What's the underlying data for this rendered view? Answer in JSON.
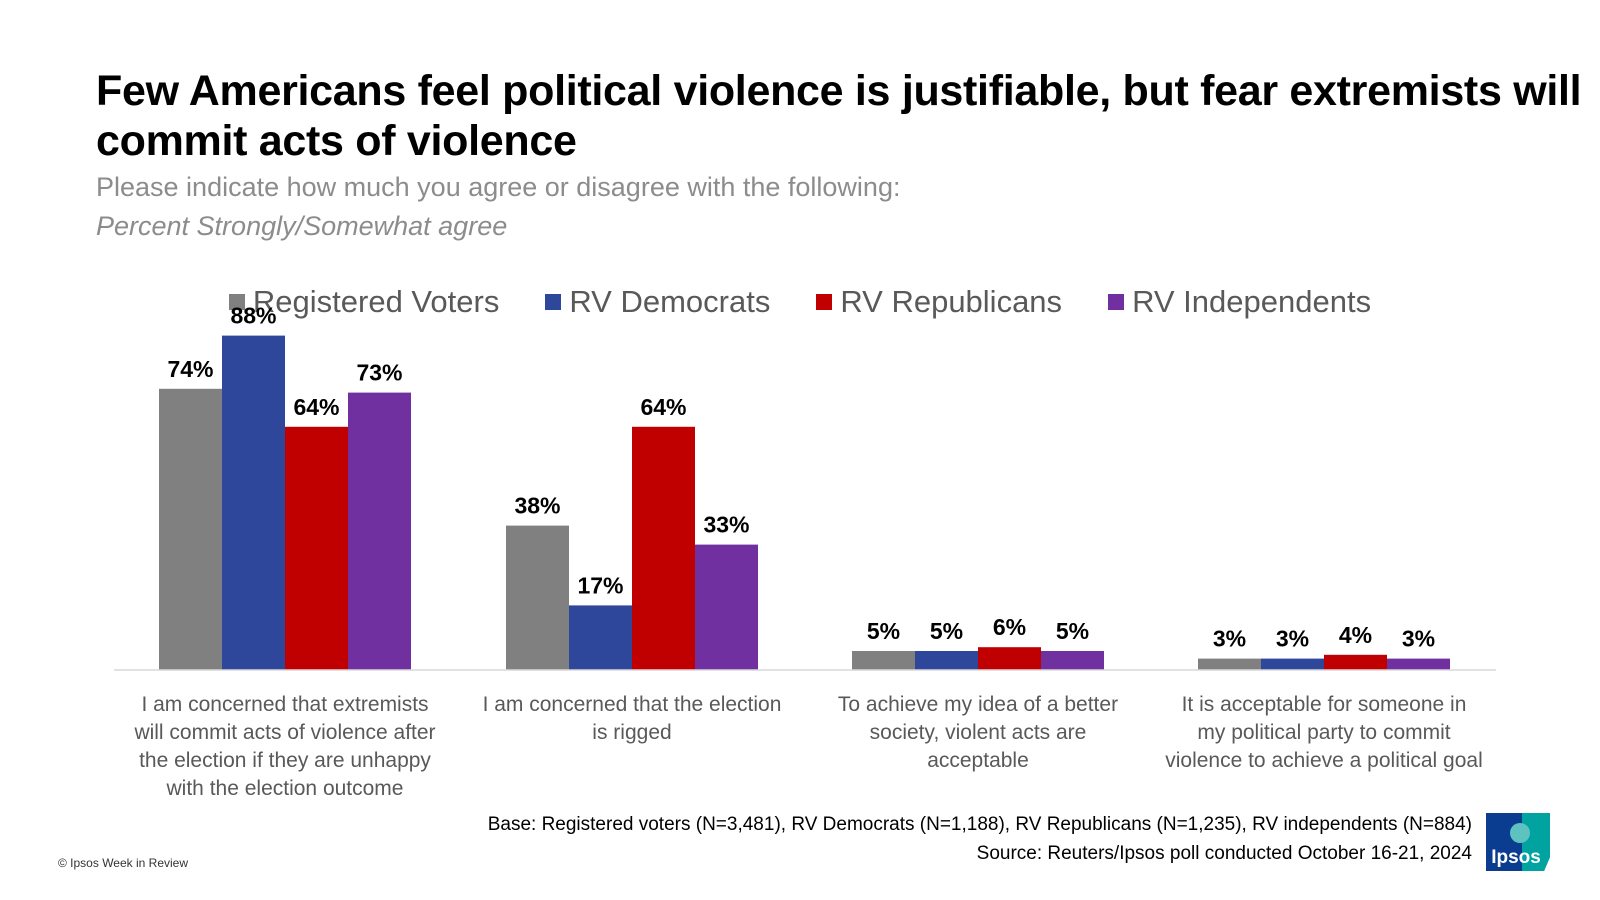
{
  "title": "Few Americans feel political violence is justifiable, but fear extremists will commit acts of violence",
  "subtitle": "Please indicate how much you agree or disagree with the following:",
  "subtitle_italic": "Percent Strongly/Somewhat agree",
  "colors": {
    "registered_voters": "#808080",
    "rv_democrats": "#2e479b",
    "rv_republicans": "#c00000",
    "rv_independents": "#7030a0"
  },
  "chart_data": {
    "type": "bar",
    "categories": [
      "I am concerned that extremists will commit acts of violence after the election if they are unhappy with the election outcome",
      "I am concerned that the election is rigged",
      "To achieve my idea of a better society, violent acts are acceptable",
      "It is acceptable for someone in my political party to commit violence to achieve a political goal"
    ],
    "category_lines": [
      [
        "I am concerned that extremists",
        "will commit acts of violence after",
        "the election if they are unhappy",
        "with the election outcome"
      ],
      [
        "I am concerned that the election",
        "is rigged"
      ],
      [
        "To achieve my idea of a better",
        "society, violent acts are",
        "acceptable"
      ],
      [
        "It is acceptable for someone in",
        "my political party to commit",
        "violence to achieve a political goal"
      ]
    ],
    "series": [
      {
        "name": "Registered Voters",
        "values": [
          74,
          38,
          5,
          3
        ],
        "labels": [
          "74%",
          "38%",
          "5%",
          "3%"
        ],
        "color": "#808080"
      },
      {
        "name": "RV Democrats",
        "values": [
          88,
          17,
          5,
          3
        ],
        "labels": [
          "88%",
          "17%",
          "5%",
          "3%"
        ],
        "color": "#2e479b"
      },
      {
        "name": "RV Republicans",
        "values": [
          64,
          64,
          6,
          4
        ],
        "labels": [
          "64%",
          "64%",
          "6%",
          "4%"
        ],
        "color": "#c00000"
      },
      {
        "name": "RV Independents",
        "values": [
          73,
          33,
          5,
          3
        ],
        "labels": [
          "73%",
          "33%",
          "5%",
          "3%"
        ],
        "color": "#7030a0"
      }
    ],
    "ylim": [
      0,
      100
    ],
    "grid": false,
    "legend_position": "top-center",
    "value_labels": true
  },
  "footer": {
    "base": "Base: Registered voters (N=3,481), RV Democrats (N=1,188), RV Republicans (N=1,235), RV independents (N=884)",
    "source": "Source: Reuters/Ipsos poll conducted October 16-21, 2024"
  },
  "copyright": "© Ipsos Week in Review",
  "logo_text": "Ipsos"
}
